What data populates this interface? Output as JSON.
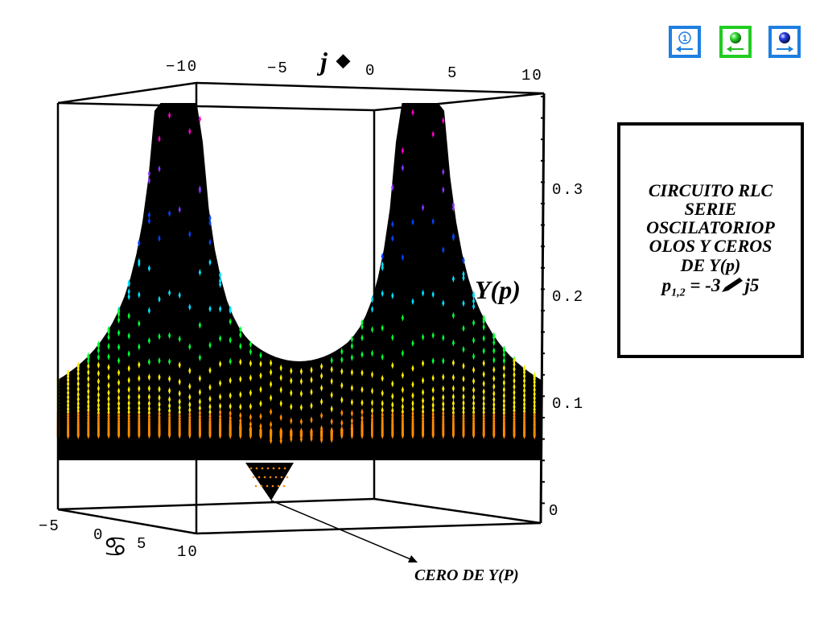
{
  "nav": {
    "info_glyph": "ⓘ",
    "back_arrow": "←",
    "next_arrow": "→",
    "colors": {
      "blue": "#1e7fe0",
      "green": "#22cc22"
    }
  },
  "axes": {
    "j_axis_label": "j",
    "j_axis_symbol": "◆",
    "j_ticks": [
      "−10",
      "−5",
      "0",
      "5",
      "10"
    ],
    "z_axis_label": "Y(p)",
    "z_ticks": [
      "0.3",
      "0.2",
      "0.1",
      "0"
    ],
    "sigma_ticks": [
      "−5",
      "0",
      "5",
      "10"
    ],
    "sigma_symbol": "♋"
  },
  "info_box": {
    "lines": [
      "CIRCUITO RLC",
      "SERIE",
      "OSCILATORIOP",
      "OLOS Y CEROS",
      "DE Y(p)"
    ],
    "formula_prefix": "p",
    "formula_sub": "1,2",
    "formula_rest": " = -3",
    "formula_suffix": "j5"
  },
  "annotation": {
    "zero_label": "CERO DE Y(P)"
  },
  "surface": {
    "pole_sigma": -3,
    "pole_omega": 5,
    "zero_at": "origin",
    "colormap": [
      "#ff8a00",
      "#ffee00",
      "#00ff33",
      "#00e0ff",
      "#0044ff",
      "#8833ff",
      "#ff00cc",
      "#ff2222"
    ]
  }
}
